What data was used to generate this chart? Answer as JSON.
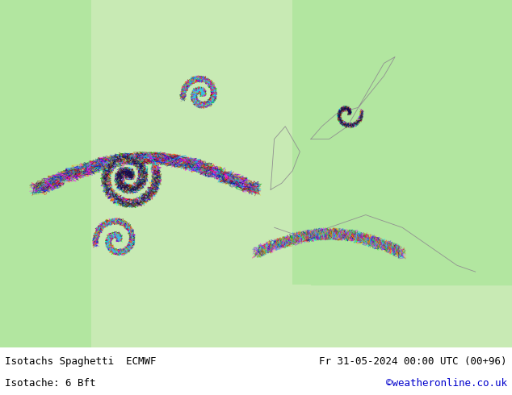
{
  "title_left": "Isotachs Spaghetti  ECMWF",
  "title_right": "Fr 31-05-2024 00:00 UTC (00+96)",
  "subtitle_left": "Isotache: 6 Bft",
  "subtitle_right": "©weatheronline.co.uk",
  "subtitle_right_color": "#0000cc",
  "background_color": "#ffffff",
  "map_bg_color": "#b2e6a0",
  "land_color": "#b2e6a0",
  "sea_color": "#ffffff",
  "border_color": "#808080",
  "fig_width": 6.34,
  "fig_height": 4.9,
  "dpi": 100,
  "bottom_bar_color": "#e8e8e8",
  "text_color": "#000000",
  "font_size_title": 9,
  "font_size_subtitle": 9
}
